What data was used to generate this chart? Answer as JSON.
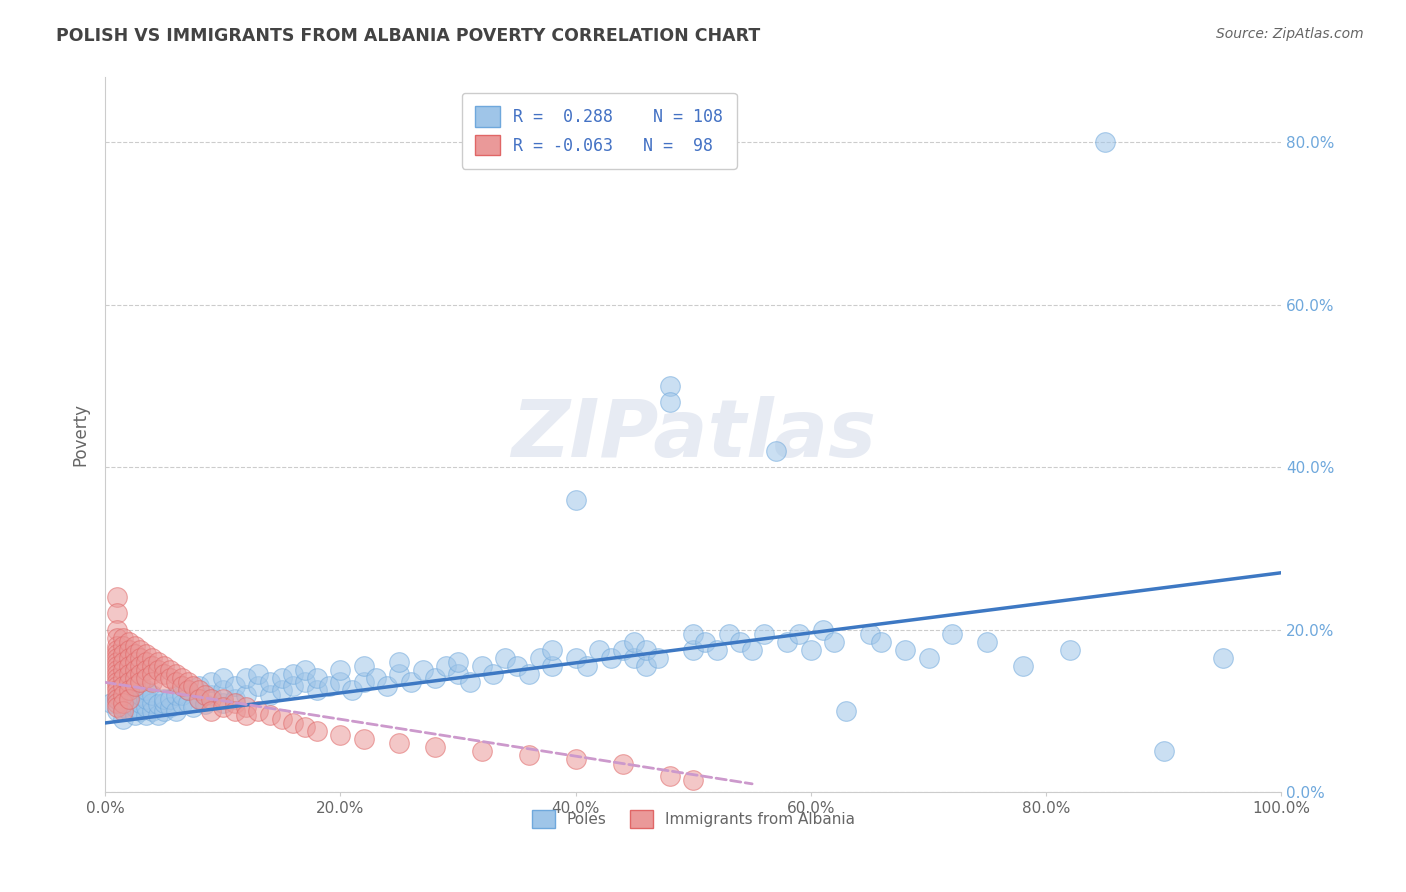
{
  "title": "POLISH VS IMMIGRANTS FROM ALBANIA POVERTY CORRELATION CHART",
  "source": "Source: ZipAtlas.com",
  "xlabel": "",
  "ylabel": "Poverty",
  "xlim": [
    0,
    1.0
  ],
  "ylim": [
    0,
    0.88
  ],
  "yticks": [
    0.0,
    0.2,
    0.4,
    0.6,
    0.8
  ],
  "ytick_labels_left": [
    "",
    "",
    "",
    "",
    ""
  ],
  "ytick_labels_right": [
    "0.0%",
    "20.0%",
    "40.0%",
    "60.0%",
    "80.0%"
  ],
  "xticks": [
    0.0,
    0.2,
    0.4,
    0.6,
    0.8,
    1.0
  ],
  "xtick_labels": [
    "0.0%",
    "20.0%",
    "40.0%",
    "60.0%",
    "80.0%",
    "100.0%"
  ],
  "watermark": "ZIPatlas",
  "poles_R": 0.288,
  "poles_N": 108,
  "albania_R": -0.063,
  "albania_N": 98,
  "poles_color": "#9fc5e8",
  "poles_edge_color": "#6fa8dc",
  "albania_color": "#ea9999",
  "albania_edge_color": "#e06666",
  "poles_line_color": "#3d78c3",
  "albania_line_color": "#cc99cc",
  "legend_label_poles": "Poles",
  "legend_label_albania": "Immigrants from Albania",
  "background_color": "#ffffff",
  "grid_color": "#cccccc",
  "title_color": "#434343",
  "axis_color": "#666666",
  "legend_text_color": "#4472c4",
  "right_axis_color": "#6fa8dc",
  "poles_trend_x": [
    0.0,
    1.0
  ],
  "poles_trend_y": [
    0.085,
    0.27
  ],
  "albania_trend_x": [
    0.0,
    0.55
  ],
  "albania_trend_y": [
    0.135,
    0.01
  ],
  "poles_scatter": [
    [
      0.005,
      0.11
    ],
    [
      0.01,
      0.1
    ],
    [
      0.01,
      0.115
    ],
    [
      0.012,
      0.12
    ],
    [
      0.015,
      0.09
    ],
    [
      0.015,
      0.105
    ],
    [
      0.015,
      0.115
    ],
    [
      0.015,
      0.125
    ],
    [
      0.02,
      0.1
    ],
    [
      0.02,
      0.11
    ],
    [
      0.02,
      0.12
    ],
    [
      0.02,
      0.13
    ],
    [
      0.025,
      0.095
    ],
    [
      0.025,
      0.105
    ],
    [
      0.025,
      0.115
    ],
    [
      0.03,
      0.1
    ],
    [
      0.03,
      0.11
    ],
    [
      0.03,
      0.12
    ],
    [
      0.03,
      0.13
    ],
    [
      0.035,
      0.095
    ],
    [
      0.035,
      0.105
    ],
    [
      0.035,
      0.115
    ],
    [
      0.035,
      0.125
    ],
    [
      0.04,
      0.1
    ],
    [
      0.04,
      0.11
    ],
    [
      0.04,
      0.12
    ],
    [
      0.045,
      0.095
    ],
    [
      0.045,
      0.108
    ],
    [
      0.05,
      0.1
    ],
    [
      0.05,
      0.11
    ],
    [
      0.05,
      0.115
    ],
    [
      0.055,
      0.105
    ],
    [
      0.055,
      0.115
    ],
    [
      0.06,
      0.1
    ],
    [
      0.06,
      0.12
    ],
    [
      0.065,
      0.108
    ],
    [
      0.065,
      0.12
    ],
    [
      0.07,
      0.11
    ],
    [
      0.07,
      0.125
    ],
    [
      0.075,
      0.105
    ],
    [
      0.08,
      0.115
    ],
    [
      0.08,
      0.13
    ],
    [
      0.085,
      0.108
    ],
    [
      0.09,
      0.12
    ],
    [
      0.09,
      0.135
    ],
    [
      0.1,
      0.11
    ],
    [
      0.1,
      0.125
    ],
    [
      0.1,
      0.14
    ],
    [
      0.11,
      0.115
    ],
    [
      0.11,
      0.13
    ],
    [
      0.12,
      0.12
    ],
    [
      0.12,
      0.14
    ],
    [
      0.13,
      0.13
    ],
    [
      0.13,
      0.145
    ],
    [
      0.14,
      0.12
    ],
    [
      0.14,
      0.135
    ],
    [
      0.15,
      0.125
    ],
    [
      0.15,
      0.14
    ],
    [
      0.16,
      0.13
    ],
    [
      0.16,
      0.145
    ],
    [
      0.17,
      0.135
    ],
    [
      0.17,
      0.15
    ],
    [
      0.18,
      0.125
    ],
    [
      0.18,
      0.14
    ],
    [
      0.19,
      0.13
    ],
    [
      0.2,
      0.135
    ],
    [
      0.2,
      0.15
    ],
    [
      0.21,
      0.125
    ],
    [
      0.22,
      0.135
    ],
    [
      0.22,
      0.155
    ],
    [
      0.23,
      0.14
    ],
    [
      0.24,
      0.13
    ],
    [
      0.25,
      0.145
    ],
    [
      0.25,
      0.16
    ],
    [
      0.26,
      0.135
    ],
    [
      0.27,
      0.15
    ],
    [
      0.28,
      0.14
    ],
    [
      0.29,
      0.155
    ],
    [
      0.3,
      0.145
    ],
    [
      0.3,
      0.16
    ],
    [
      0.31,
      0.135
    ],
    [
      0.32,
      0.155
    ],
    [
      0.33,
      0.145
    ],
    [
      0.34,
      0.165
    ],
    [
      0.35,
      0.155
    ],
    [
      0.36,
      0.145
    ],
    [
      0.37,
      0.165
    ],
    [
      0.38,
      0.155
    ],
    [
      0.38,
      0.175
    ],
    [
      0.4,
      0.36
    ],
    [
      0.4,
      0.165
    ],
    [
      0.41,
      0.155
    ],
    [
      0.42,
      0.175
    ],
    [
      0.43,
      0.165
    ],
    [
      0.44,
      0.175
    ],
    [
      0.45,
      0.165
    ],
    [
      0.45,
      0.185
    ],
    [
      0.46,
      0.155
    ],
    [
      0.46,
      0.175
    ],
    [
      0.47,
      0.165
    ],
    [
      0.48,
      0.5
    ],
    [
      0.48,
      0.48
    ],
    [
      0.5,
      0.175
    ],
    [
      0.5,
      0.195
    ],
    [
      0.51,
      0.185
    ],
    [
      0.52,
      0.175
    ],
    [
      0.53,
      0.195
    ],
    [
      0.54,
      0.185
    ],
    [
      0.55,
      0.175
    ],
    [
      0.56,
      0.195
    ],
    [
      0.57,
      0.42
    ],
    [
      0.58,
      0.185
    ],
    [
      0.59,
      0.195
    ],
    [
      0.6,
      0.175
    ],
    [
      0.61,
      0.2
    ],
    [
      0.62,
      0.185
    ],
    [
      0.63,
      0.1
    ],
    [
      0.65,
      0.195
    ],
    [
      0.66,
      0.185
    ],
    [
      0.68,
      0.175
    ],
    [
      0.7,
      0.165
    ],
    [
      0.72,
      0.195
    ],
    [
      0.75,
      0.185
    ],
    [
      0.78,
      0.155
    ],
    [
      0.82,
      0.175
    ],
    [
      0.85,
      0.8
    ],
    [
      0.9,
      0.05
    ],
    [
      0.95,
      0.165
    ]
  ],
  "albania_scatter": [
    [
      0.01,
      0.24
    ],
    [
      0.01,
      0.22
    ],
    [
      0.01,
      0.2
    ],
    [
      0.01,
      0.19
    ],
    [
      0.01,
      0.18
    ],
    [
      0.01,
      0.175
    ],
    [
      0.01,
      0.17
    ],
    [
      0.01,
      0.165
    ],
    [
      0.01,
      0.16
    ],
    [
      0.01,
      0.155
    ],
    [
      0.01,
      0.15
    ],
    [
      0.01,
      0.145
    ],
    [
      0.01,
      0.14
    ],
    [
      0.01,
      0.135
    ],
    [
      0.01,
      0.13
    ],
    [
      0.01,
      0.125
    ],
    [
      0.01,
      0.12
    ],
    [
      0.01,
      0.115
    ],
    [
      0.01,
      0.11
    ],
    [
      0.01,
      0.105
    ],
    [
      0.015,
      0.19
    ],
    [
      0.015,
      0.18
    ],
    [
      0.015,
      0.17
    ],
    [
      0.015,
      0.16
    ],
    [
      0.015,
      0.15
    ],
    [
      0.015,
      0.14
    ],
    [
      0.015,
      0.13
    ],
    [
      0.015,
      0.12
    ],
    [
      0.015,
      0.11
    ],
    [
      0.015,
      0.1
    ],
    [
      0.02,
      0.185
    ],
    [
      0.02,
      0.175
    ],
    [
      0.02,
      0.165
    ],
    [
      0.02,
      0.155
    ],
    [
      0.02,
      0.145
    ],
    [
      0.02,
      0.135
    ],
    [
      0.02,
      0.125
    ],
    [
      0.02,
      0.115
    ],
    [
      0.025,
      0.18
    ],
    [
      0.025,
      0.17
    ],
    [
      0.025,
      0.16
    ],
    [
      0.025,
      0.15
    ],
    [
      0.025,
      0.14
    ],
    [
      0.025,
      0.13
    ],
    [
      0.03,
      0.175
    ],
    [
      0.03,
      0.165
    ],
    [
      0.03,
      0.155
    ],
    [
      0.03,
      0.145
    ],
    [
      0.03,
      0.135
    ],
    [
      0.035,
      0.17
    ],
    [
      0.035,
      0.16
    ],
    [
      0.035,
      0.15
    ],
    [
      0.035,
      0.14
    ],
    [
      0.04,
      0.165
    ],
    [
      0.04,
      0.155
    ],
    [
      0.04,
      0.145
    ],
    [
      0.04,
      0.135
    ],
    [
      0.045,
      0.16
    ],
    [
      0.045,
      0.15
    ],
    [
      0.05,
      0.155
    ],
    [
      0.05,
      0.145
    ],
    [
      0.05,
      0.135
    ],
    [
      0.055,
      0.15
    ],
    [
      0.055,
      0.14
    ],
    [
      0.06,
      0.145
    ],
    [
      0.06,
      0.135
    ],
    [
      0.065,
      0.14
    ],
    [
      0.065,
      0.13
    ],
    [
      0.07,
      0.135
    ],
    [
      0.07,
      0.125
    ],
    [
      0.075,
      0.13
    ],
    [
      0.08,
      0.125
    ],
    [
      0.08,
      0.115
    ],
    [
      0.085,
      0.12
    ],
    [
      0.09,
      0.115
    ],
    [
      0.09,
      0.1
    ],
    [
      0.1,
      0.115
    ],
    [
      0.1,
      0.105
    ],
    [
      0.11,
      0.11
    ],
    [
      0.11,
      0.1
    ],
    [
      0.12,
      0.105
    ],
    [
      0.12,
      0.095
    ],
    [
      0.13,
      0.1
    ],
    [
      0.14,
      0.095
    ],
    [
      0.15,
      0.09
    ],
    [
      0.16,
      0.085
    ],
    [
      0.17,
      0.08
    ],
    [
      0.18,
      0.075
    ],
    [
      0.2,
      0.07
    ],
    [
      0.22,
      0.065
    ],
    [
      0.25,
      0.06
    ],
    [
      0.28,
      0.055
    ],
    [
      0.32,
      0.05
    ],
    [
      0.36,
      0.045
    ],
    [
      0.4,
      0.04
    ],
    [
      0.44,
      0.035
    ],
    [
      0.48,
      0.02
    ],
    [
      0.5,
      0.015
    ]
  ]
}
